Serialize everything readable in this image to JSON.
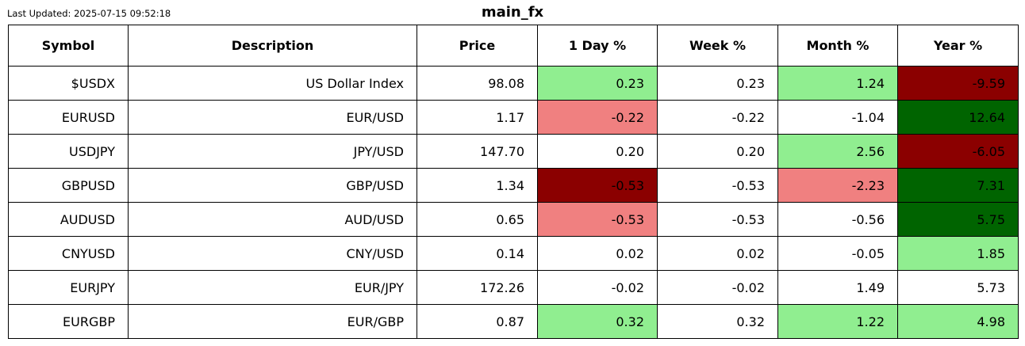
{
  "last_updated": "Last Updated: 2025-07-15 09:52:18",
  "chart_data": {
    "type": "table",
    "title": "main_fx",
    "colors": {
      "strong_positive": "#006400",
      "positive": "#90ee90",
      "negative": "#f08080",
      "strong_negative": "#8b0000",
      "neutral": "#ffffff"
    },
    "columns": [
      "Symbol",
      "Description",
      "Price",
      "1 Day %",
      "Week %",
      "Month %",
      "Year %"
    ],
    "rows": [
      {
        "symbol": "$USDX",
        "description": "US Dollar Index",
        "price": "98.08",
        "values": [
          "0.23",
          "0.23",
          "1.24",
          "-9.59"
        ],
        "shading": [
          "positive",
          "neutral",
          "positive",
          "strong_negative"
        ]
      },
      {
        "symbol": "EURUSD",
        "description": "EUR/USD",
        "price": "1.17",
        "values": [
          "-0.22",
          "-0.22",
          "-1.04",
          "12.64"
        ],
        "shading": [
          "negative",
          "neutral",
          "neutral",
          "strong_positive"
        ]
      },
      {
        "symbol": "USDJPY",
        "description": "JPY/USD",
        "price": "147.70",
        "values": [
          "0.20",
          "0.20",
          "2.56",
          "-6.05"
        ],
        "shading": [
          "neutral",
          "neutral",
          "positive",
          "strong_negative"
        ]
      },
      {
        "symbol": "GBPUSD",
        "description": "GBP/USD",
        "price": "1.34",
        "values": [
          "-0.53",
          "-0.53",
          "-2.23",
          "7.31"
        ],
        "shading": [
          "strong_negative",
          "neutral",
          "negative",
          "strong_positive"
        ]
      },
      {
        "symbol": "AUDUSD",
        "description": "AUD/USD",
        "price": "0.65",
        "values": [
          "-0.53",
          "-0.53",
          "-0.56",
          "5.75"
        ],
        "shading": [
          "negative",
          "neutral",
          "neutral",
          "strong_positive"
        ]
      },
      {
        "symbol": "CNYUSD",
        "description": "CNY/USD",
        "price": "0.14",
        "values": [
          "0.02",
          "0.02",
          "-0.05",
          "1.85"
        ],
        "shading": [
          "neutral",
          "neutral",
          "neutral",
          "positive"
        ]
      },
      {
        "symbol": "EURJPY",
        "description": "EUR/JPY",
        "price": "172.26",
        "values": [
          "-0.02",
          "-0.02",
          "1.49",
          "5.73"
        ],
        "shading": [
          "neutral",
          "neutral",
          "neutral",
          "neutral"
        ]
      },
      {
        "symbol": "EURGBP",
        "description": "EUR/GBP",
        "price": "0.87",
        "values": [
          "0.32",
          "0.32",
          "1.22",
          "4.98"
        ],
        "shading": [
          "positive",
          "neutral",
          "positive",
          "positive"
        ]
      }
    ]
  }
}
